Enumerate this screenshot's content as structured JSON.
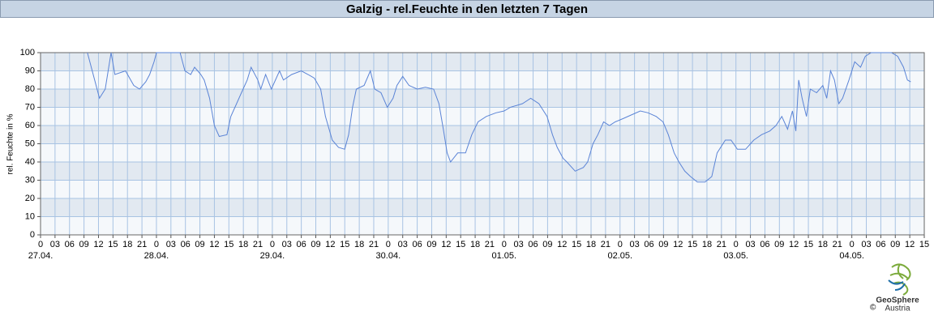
{
  "chart_data": {
    "type": "line",
    "title": "Galzig - rel.Feuchte in den letzten 7 Tagen",
    "y_label": "rel. Feuchte in %",
    "x": [
      9.7,
      12.2,
      13.4,
      14.6,
      15.4,
      17.6,
      19.3,
      20.5,
      21.8,
      22.6,
      23.5,
      24,
      28.9,
      29.9,
      31.1,
      31.9,
      33.2,
      33.9,
      35,
      36,
      37,
      38.6,
      39.4,
      40.6,
      41.6,
      42.8,
      43.6,
      45,
      45.6,
      46.6,
      47.8,
      49.5,
      50.3,
      52,
      54,
      55.4,
      56.7,
      58,
      59,
      60.4,
      61.7,
      63,
      63.8,
      64.6,
      65.4,
      67,
      68.3,
      69.2,
      70.5,
      71.8,
      73,
      73.8,
      75,
      76.3,
      78,
      79.7,
      81.4,
      82.5,
      83.4,
      84.2,
      84.9,
      86.4,
      88,
      89.3,
      90.6,
      92.3,
      94.3,
      96,
      97.3,
      99.8,
      101.5,
      103.2,
      104.9,
      106,
      107,
      108.2,
      109,
      110.7,
      112.4,
      113.3,
      114.4,
      115.4,
      116.6,
      117.8,
      119,
      120.8,
      122.5,
      124.2,
      125.8,
      127.5,
      128.9,
      130,
      131.2,
      132.2,
      133.4,
      134.6,
      136,
      137.6,
      139,
      140.1,
      141.8,
      143,
      144.3,
      146,
      147.7,
      149.3,
      151,
      152.3,
      153.5,
      154.7,
      155.7,
      156.4,
      157,
      157.7,
      158.6,
      159.4,
      160.7,
      162,
      162.8,
      163.6,
      164.4,
      165.3,
      166.1,
      167.4,
      168.6,
      169.8,
      170.8,
      172,
      174.5,
      176.2,
      177.5,
      178.7,
      179.5,
      180.2
    ],
    "values": [
      100,
      75,
      80,
      100,
      88,
      90,
      82,
      80,
      84,
      88,
      95,
      100,
      100,
      90,
      88,
      92,
      88,
      85,
      75,
      60,
      54,
      55,
      65,
      72,
      78,
      85,
      92,
      85,
      80,
      88,
      80,
      90,
      85,
      88,
      90,
      88,
      86,
      80,
      65,
      52,
      48,
      47,
      55,
      70,
      80,
      82,
      90,
      80,
      78,
      70,
      75,
      82,
      87,
      82,
      80,
      81,
      80,
      72,
      58,
      45,
      40,
      45,
      45,
      55,
      62,
      65,
      67,
      68,
      70,
      72,
      75,
      72,
      65,
      55,
      48,
      42,
      40,
      35,
      37,
      40,
      50,
      55,
      62,
      60,
      62,
      64,
      66,
      68,
      67,
      65,
      62,
      55,
      45,
      40,
      35,
      32,
      29,
      29,
      32,
      45,
      52,
      52,
      47,
      47,
      52,
      55,
      57,
      60,
      65,
      58,
      68,
      57,
      85,
      75,
      65,
      80,
      78,
      82,
      75,
      90,
      85,
      72,
      75,
      85,
      95,
      92,
      98,
      100,
      100,
      100,
      98,
      92,
      85,
      84
    ],
    "color": "#5b84d6",
    "xlim": [
      0,
      183
    ],
    "ylim": [
      0,
      100
    ],
    "yticks": [
      0,
      10,
      20,
      30,
      40,
      50,
      60,
      70,
      80,
      90,
      100
    ],
    "xticks": [
      0,
      {
        "value": 3,
        "label": "03"
      },
      {
        "value": 6,
        "label": "06"
      },
      {
        "value": 9,
        "label": "09"
      },
      12,
      15,
      18,
      21,
      {
        "value": 24,
        "label": "0"
      },
      {
        "value": 27,
        "label": "03"
      },
      {
        "value": 30,
        "label": "06"
      },
      {
        "value": 33,
        "label": "09"
      },
      {
        "value": 36,
        "label": "12"
      },
      {
        "value": 39,
        "label": "15"
      },
      {
        "value": 42,
        "label": "18"
      },
      {
        "value": 45,
        "label": "21"
      },
      {
        "value": 48,
        "label": "0"
      },
      {
        "value": 51,
        "label": "03"
      },
      {
        "value": 54,
        "label": "06"
      },
      {
        "value": 57,
        "label": "09"
      },
      {
        "value": 60,
        "label": "12"
      },
      {
        "value": 63,
        "label": "15"
      },
      {
        "value": 66,
        "label": "18"
      },
      {
        "value": 69,
        "label": "21"
      },
      {
        "value": 72,
        "label": "0"
      },
      {
        "value": 75,
        "label": "03"
      },
      {
        "value": 78,
        "label": "06"
      },
      {
        "value": 81,
        "label": "09"
      },
      {
        "value": 84,
        "label": "12"
      },
      {
        "value": 87,
        "label": "15"
      },
      {
        "value": 90,
        "label": "18"
      },
      {
        "value": 93,
        "label": "21"
      },
      {
        "value": 96,
        "label": "0"
      },
      {
        "value": 99,
        "label": "03"
      },
      {
        "value": 102,
        "label": "06"
      },
      {
        "value": 105,
        "label": "09"
      },
      {
        "value": 108,
        "label": "12"
      },
      {
        "value": 111,
        "label": "15"
      },
      {
        "value": 114,
        "label": "18"
      },
      {
        "value": 117,
        "label": "21"
      },
      {
        "value": 120,
        "label": "0"
      },
      {
        "value": 123,
        "label": "03"
      },
      {
        "value": 126,
        "label": "06"
      },
      {
        "value": 129,
        "label": "09"
      },
      {
        "value": 132,
        "label": "12"
      },
      {
        "value": 135,
        "label": "15"
      },
      {
        "value": 138,
        "label": "18"
      },
      {
        "value": 141,
        "label": "21"
      },
      {
        "value": 144,
        "label": "0"
      },
      {
        "value": 147,
        "label": "03"
      },
      {
        "value": 150,
        "label": "06"
      },
      {
        "value": 153,
        "label": "09"
      },
      {
        "value": 156,
        "label": "12"
      },
      {
        "value": 159,
        "label": "15"
      },
      {
        "value": 162,
        "label": "18"
      },
      {
        "value": 165,
        "label": "21"
      },
      {
        "value": 168,
        "label": "0"
      },
      {
        "value": 171,
        "label": "03"
      },
      {
        "value": 174,
        "label": "06"
      },
      {
        "value": 177,
        "label": "09"
      },
      {
        "value": 180,
        "label": "12"
      },
      {
        "value": 183,
        "label": "15"
      }
    ],
    "date_labels": [
      {
        "value": 0,
        "label": "27.04."
      },
      {
        "value": 24,
        "label": "28.04."
      },
      {
        "value": 48,
        "label": "29.04."
      },
      {
        "value": 72,
        "label": "30.04."
      },
      {
        "value": 96,
        "label": "01.05."
      },
      {
        "value": 120,
        "label": "02.05."
      },
      {
        "value": 144,
        "label": "03.05."
      },
      {
        "value": 168,
        "label": "04.05."
      }
    ],
    "grid": true
  },
  "logo": {
    "name": "GeoSphere",
    "sub": "Austria",
    "copyright": "©"
  }
}
